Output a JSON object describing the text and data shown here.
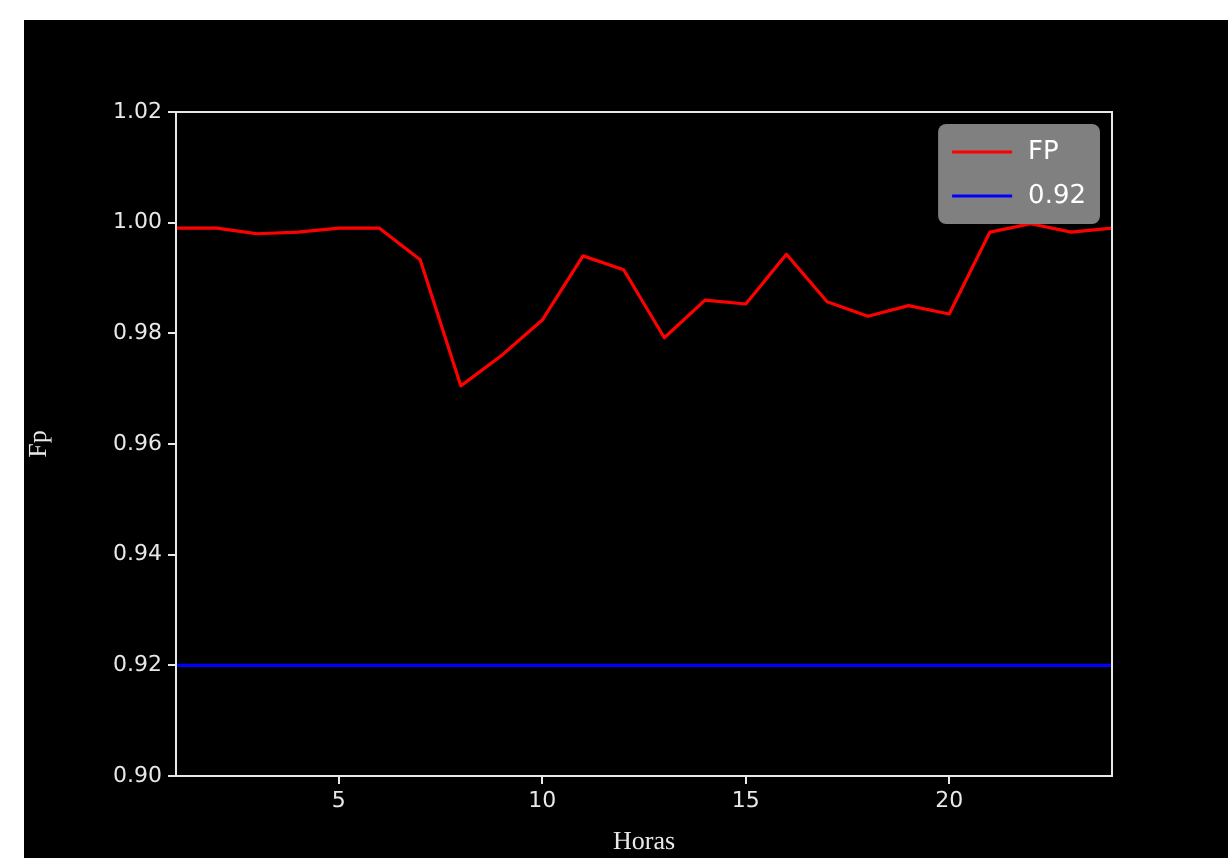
{
  "chart_data": {
    "type": "line",
    "xlabel": "Horas",
    "ylabel": "Fp",
    "x": [
      1,
      2,
      3,
      4,
      5,
      6,
      7,
      8,
      9,
      10,
      11,
      12,
      13,
      14,
      15,
      16,
      17,
      18,
      19,
      20,
      21,
      22,
      23,
      24
    ],
    "series": [
      {
        "name": "FP",
        "color": "#ff0000",
        "values": [
          0.999,
          0.999,
          0.998,
          0.9983,
          0.999,
          0.999,
          0.9933,
          0.9705,
          0.976,
          0.9824,
          0.994,
          0.9915,
          0.9792,
          0.986,
          0.9853,
          0.9943,
          0.9857,
          0.9831,
          0.985,
          0.9835,
          0.9983,
          0.9998,
          0.9983,
          0.999
        ]
      },
      {
        "name": "0.92",
        "color": "#0000ff",
        "values": [
          0.92,
          0.92,
          0.92,
          0.92,
          0.92,
          0.92,
          0.92,
          0.92,
          0.92,
          0.92,
          0.92,
          0.92,
          0.92,
          0.92,
          0.92,
          0.92,
          0.92,
          0.92,
          0.92,
          0.92,
          0.92,
          0.92,
          0.92,
          0.92
        ]
      }
    ],
    "xlim": [
      1,
      24
    ],
    "xticks": [
      5,
      10,
      15,
      20
    ],
    "ylim": [
      0.9,
      1.02
    ],
    "yticks": [
      {
        "value": 0.9,
        "label": "0.90"
      },
      0.92,
      0.94,
      0.96,
      0.98,
      {
        "value": 1.0,
        "label": "1.00"
      },
      1.02
    ],
    "legend": "top right",
    "grid": false,
    "marker": "none",
    "line_style": "solid"
  }
}
